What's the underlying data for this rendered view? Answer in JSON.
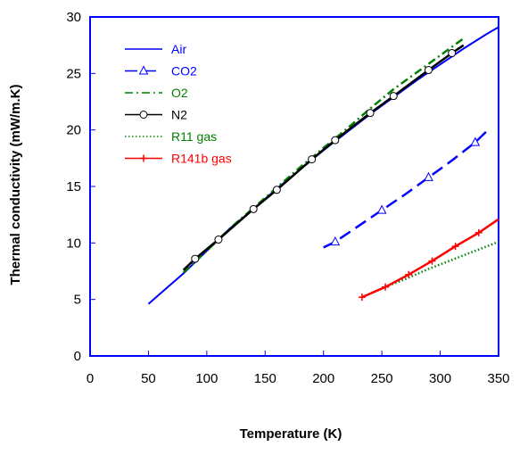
{
  "chart_data": {
    "type": "line",
    "title": "",
    "xlabel": "Temperature (K)",
    "ylabel": "Thermal conductivity (mW/m.K)",
    "xlim": [
      0,
      350
    ],
    "ylim": [
      0,
      30
    ],
    "xticks": [
      0,
      50,
      100,
      150,
      200,
      250,
      300,
      350
    ],
    "yticks": [
      0,
      5,
      10,
      15,
      20,
      25,
      30
    ],
    "grid": false,
    "legend_position": "top-left",
    "series": [
      {
        "name": "Air",
        "color": "#0000ff",
        "line_style": "solid",
        "marker": "none",
        "x": [
          50,
          60,
          80,
          100,
          120,
          140,
          160,
          180,
          200,
          220,
          240,
          260,
          280,
          300,
          320,
          340,
          350
        ],
        "y": [
          4.6,
          5.5,
          7.3,
          9.3,
          11.3,
          13.0,
          14.8,
          16.5,
          18.2,
          19.8,
          21.4,
          22.9,
          24.4,
          25.8,
          27.2,
          28.5,
          29.1
        ]
      },
      {
        "name": "CO2",
        "color": "#0000ff",
        "line_style": "dashed",
        "marker": "triangle",
        "x": [
          200,
          210,
          230,
          250,
          270,
          290,
          310,
          330,
          340
        ],
        "y": [
          9.6,
          10.1,
          11.5,
          12.9,
          14.3,
          15.8,
          17.3,
          18.9,
          19.9
        ],
        "marker_x": [
          210,
          250,
          290,
          330
        ],
        "marker_y": [
          10.1,
          12.9,
          15.8,
          18.9
        ]
      },
      {
        "name": "O2",
        "color": "#008000",
        "line_style": "dash-dot",
        "marker": "none",
        "x": [
          80,
          100,
          120,
          140,
          160,
          180,
          200,
          220,
          240,
          260,
          280,
          300,
          320
        ],
        "y": [
          7.4,
          9.3,
          11.3,
          13.1,
          14.9,
          16.7,
          18.4,
          20.1,
          21.9,
          23.6,
          25.1,
          26.6,
          28.1
        ]
      },
      {
        "name": "N2",
        "color": "#000000",
        "line_style": "solid",
        "marker": "circle",
        "x": [
          80,
          90,
          110,
          140,
          160,
          190,
          210,
          240,
          260,
          290,
          310,
          320
        ],
        "y": [
          7.6,
          8.6,
          10.3,
          13.0,
          14.7,
          17.4,
          19.1,
          21.5,
          23.0,
          25.3,
          26.8,
          27.5
        ],
        "marker_x": [
          90,
          110,
          140,
          160,
          190,
          210,
          240,
          260,
          290,
          310
        ],
        "marker_y": [
          8.6,
          10.3,
          13.0,
          14.7,
          17.4,
          19.1,
          21.5,
          23.0,
          25.3,
          26.8
        ]
      },
      {
        "name": "R11 gas",
        "color": "#008000",
        "line_style": "dotted",
        "marker": "none",
        "x": [
          250,
          270,
          290,
          310,
          330,
          350
        ],
        "y": [
          6.0,
          6.8,
          7.7,
          8.5,
          9.3,
          10.1
        ]
      },
      {
        "name": "R141b gas",
        "color": "#ff0000",
        "line_style": "solid",
        "marker": "plus",
        "x": [
          233,
          253,
          273,
          293,
          313,
          333,
          350
        ],
        "y": [
          5.2,
          6.1,
          7.2,
          8.4,
          9.7,
          10.9,
          12.1
        ],
        "marker_x": [
          233,
          253,
          273,
          293,
          313,
          333
        ],
        "marker_y": [
          5.2,
          6.1,
          7.2,
          8.4,
          9.7,
          10.9
        ]
      }
    ]
  }
}
